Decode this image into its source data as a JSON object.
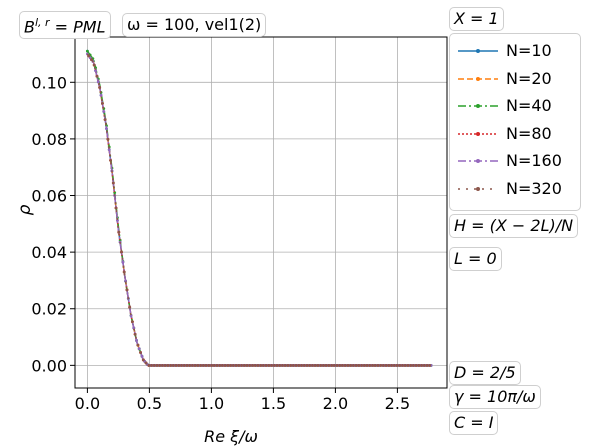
{
  "chart_data": {
    "type": "line",
    "xlabel": "Re ξ/ω",
    "ylabel": "ρ",
    "xlim": [
      -0.1,
      2.9
    ],
    "ylim": [
      -0.008,
      0.116
    ],
    "xticks": [
      "0.0",
      "0.5",
      "1.0",
      "1.5",
      "2.0",
      "2.5"
    ],
    "xtick_values": [
      0.0,
      0.5,
      1.0,
      1.5,
      2.0,
      2.5
    ],
    "yticks": [
      "0.00",
      "0.02",
      "0.04",
      "0.06",
      "0.08",
      "0.10"
    ],
    "ytick_values": [
      0.0,
      0.02,
      0.04,
      0.06,
      0.08,
      0.1
    ],
    "grid": true,
    "legend_position": "outside-right",
    "x": [
      0.0,
      0.05,
      0.1,
      0.15,
      0.2,
      0.25,
      0.3,
      0.35,
      0.4,
      0.45,
      0.49,
      0.5,
      1.0,
      1.5,
      2.0,
      2.5,
      2.78
    ],
    "series": [
      {
        "name": "N=10",
        "color": "#1f77b4",
        "dash": "solid",
        "values": [
          0.111,
          0.107,
          0.098,
          0.085,
          0.068,
          0.048,
          0.032,
          0.018,
          0.008,
          0.002,
          0.0,
          0.0,
          0.0,
          0.0,
          0.0,
          0.0,
          0.0
        ]
      },
      {
        "name": "N=20",
        "color": "#ff7f0e",
        "dash": "dashed",
        "values": [
          0.11,
          0.107,
          0.098,
          0.085,
          0.068,
          0.048,
          0.032,
          0.018,
          0.008,
          0.002,
          0.0,
          0.0,
          0.0,
          0.0,
          0.0,
          0.0,
          0.0
        ]
      },
      {
        "name": "N=40",
        "color": "#2ca02c",
        "dash": "dashdot",
        "values": [
          0.111,
          0.108,
          0.099,
          0.086,
          0.069,
          0.049,
          0.032,
          0.018,
          0.008,
          0.002,
          0.0,
          0.0,
          0.0,
          0.0,
          0.0,
          0.0,
          0.0
        ]
      },
      {
        "name": "N=80",
        "color": "#d62728",
        "dash": "dotted",
        "values": [
          0.11,
          0.107,
          0.098,
          0.085,
          0.068,
          0.048,
          0.032,
          0.018,
          0.008,
          0.002,
          0.0,
          0.0,
          0.0,
          0.0,
          0.0,
          0.0,
          0.0
        ]
      },
      {
        "name": "N=160",
        "color": "#9467bd",
        "dash": "dashdot",
        "values": [
          0.11,
          0.107,
          0.098,
          0.085,
          0.068,
          0.048,
          0.032,
          0.018,
          0.008,
          0.002,
          0.0,
          0.0,
          0.0,
          0.0,
          0.0,
          0.0,
          0.0
        ]
      },
      {
        "name": "N=320",
        "color": "#8c564b",
        "dash": "loose",
        "values": [
          0.11,
          0.107,
          0.098,
          0.085,
          0.068,
          0.048,
          0.032,
          0.018,
          0.008,
          0.002,
          0.0,
          0.0,
          0.0,
          0.0,
          0.0,
          0.0,
          0.0
        ]
      }
    ]
  },
  "annotations": {
    "bc_lhs": "B",
    "bc_sup": "l, r",
    "bc_rhs": "= PML",
    "omega": "ω = 100, vel1(2)",
    "x_eq": "X = 1",
    "h_eq": "H = (X − 2L)/N",
    "l_eq": "L = 0",
    "d_eq": "D = 2/5",
    "gamma_eq": "γ = 10π/ω",
    "c_eq": "C = I"
  }
}
